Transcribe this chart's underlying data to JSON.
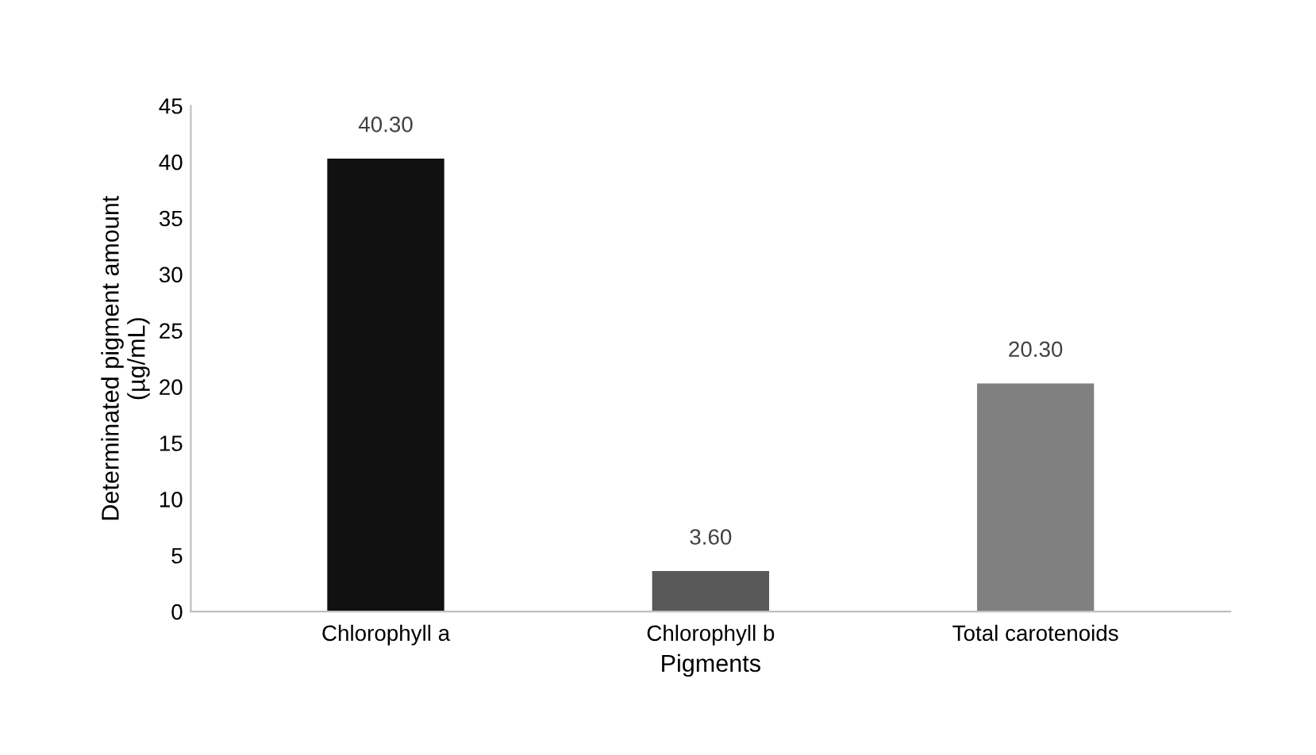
{
  "chart_data": {
    "type": "bar",
    "xlabel": "Pigments",
    "ylabel": "Determinated pigment amount\n(µg/mL)",
    "categories": [
      "Chlorophyll a",
      "Chlorophyll b",
      "Total carotenoids"
    ],
    "values": [
      40.3,
      3.6,
      20.3
    ],
    "colors": [
      "#111111",
      "#595959",
      "#808080"
    ],
    "value_labels": [
      "40.30",
      "3.60",
      "20.30"
    ],
    "ylim": [
      0,
      45
    ],
    "yticks": [
      0,
      5,
      10,
      15,
      20,
      25,
      30,
      35,
      40,
      45
    ],
    "grid": false,
    "legend": false
  }
}
